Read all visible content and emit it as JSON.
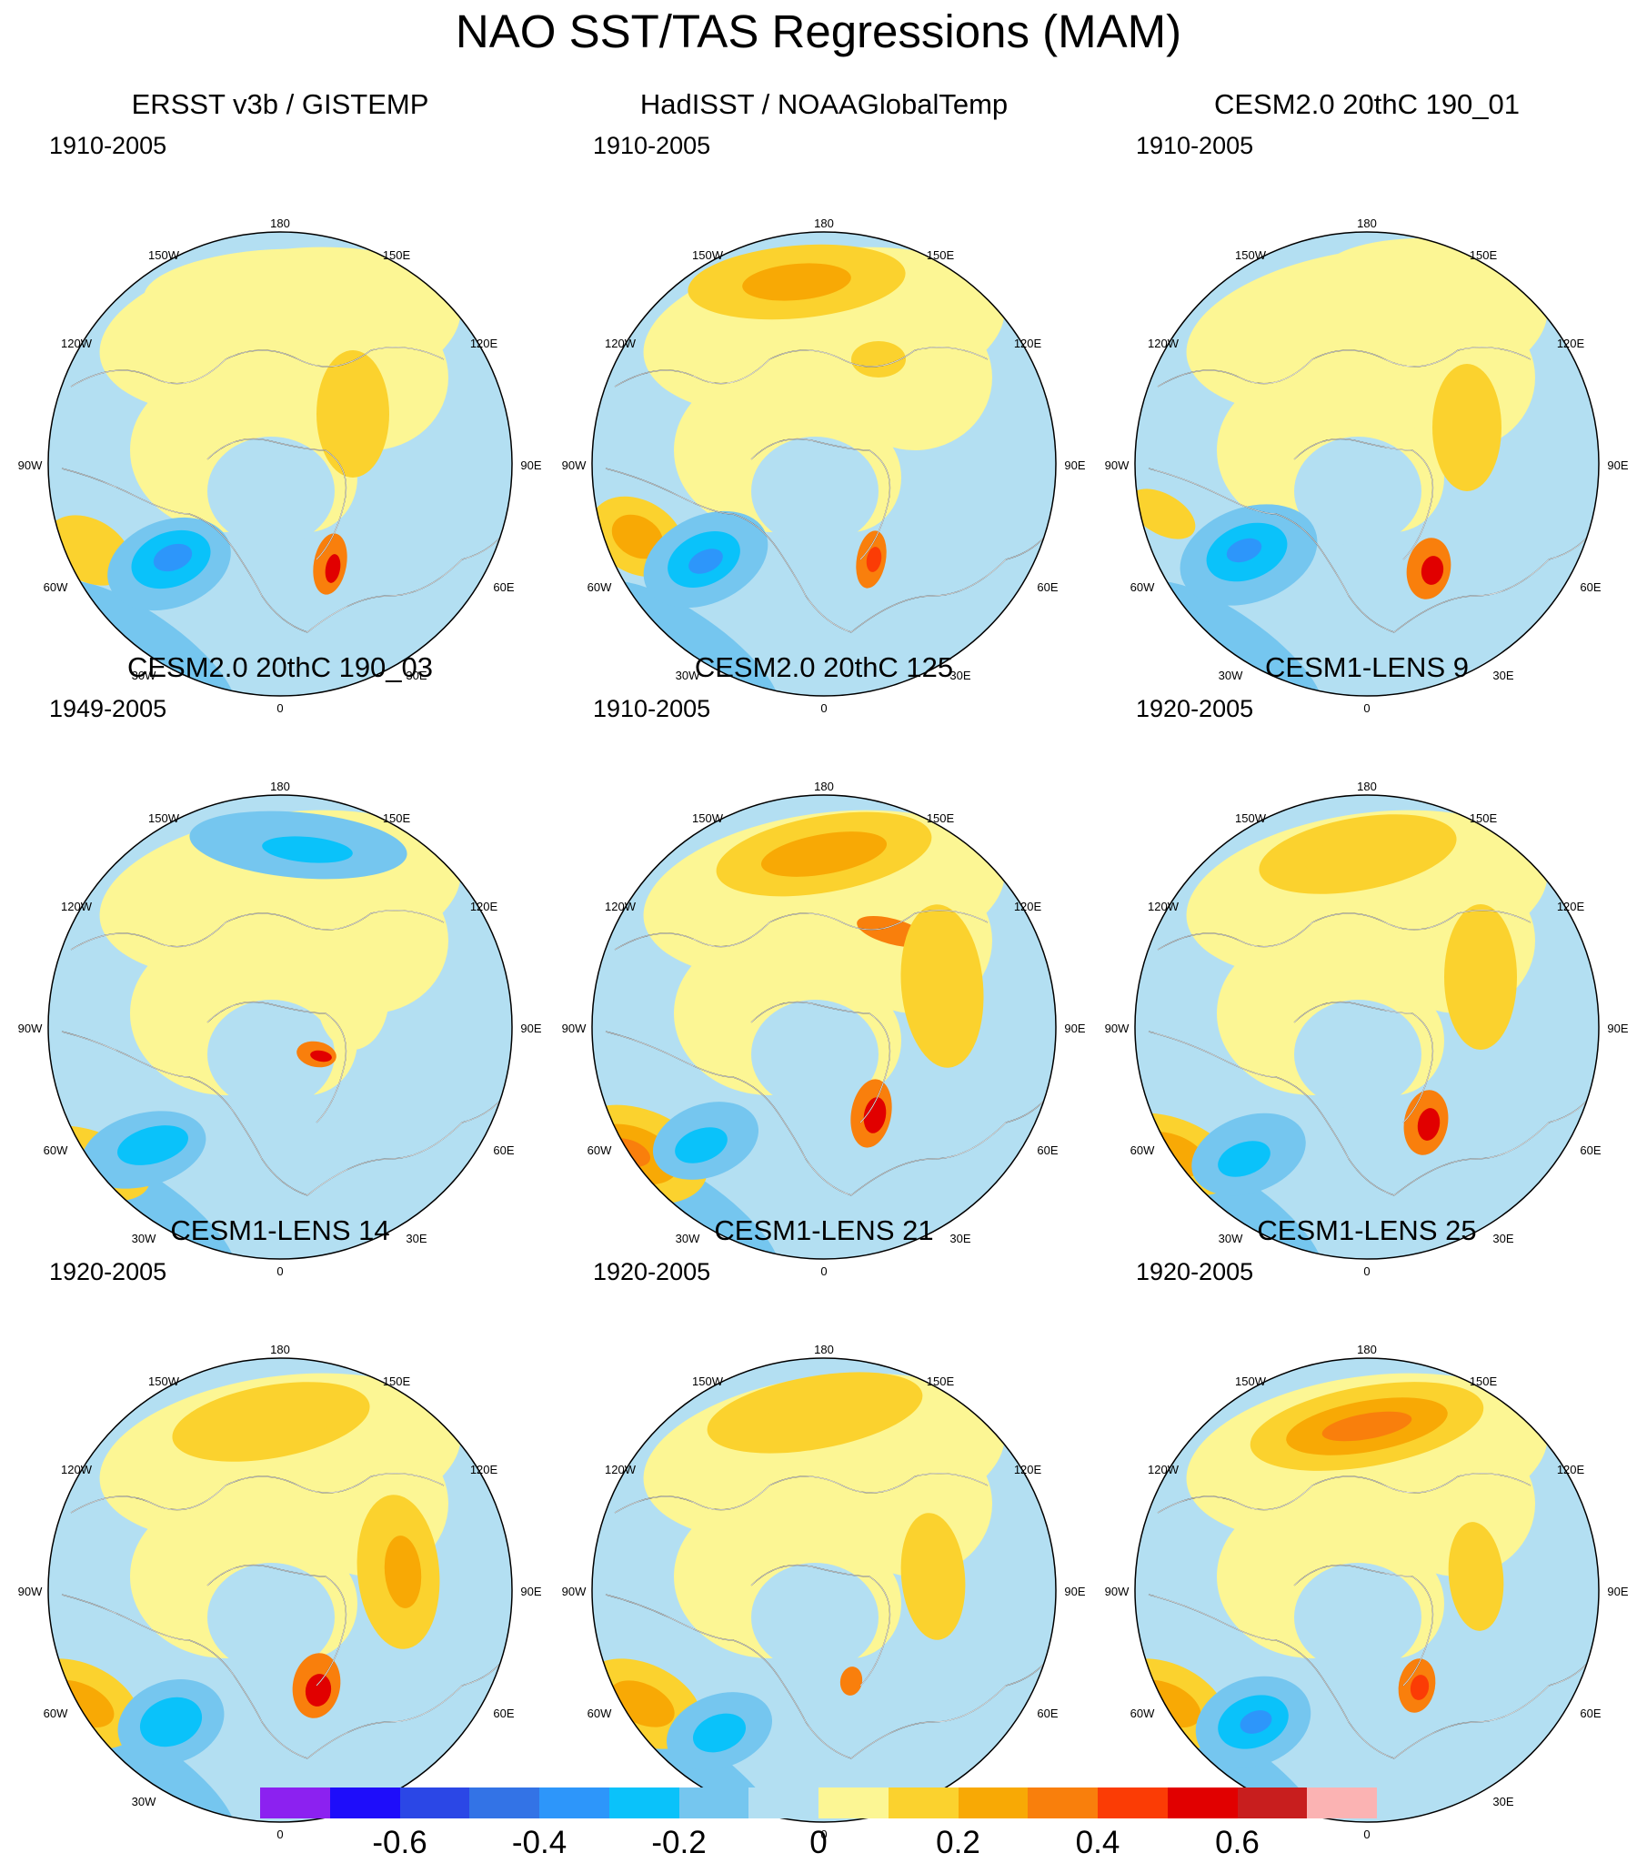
{
  "title": "NAO SST/TAS Regressions (MAM)",
  "longitude_labels": {
    "top": "180",
    "bottom": "0",
    "l150": "150W",
    "r150": "150E",
    "l120": "120W",
    "r120": "120E",
    "l90": "90W",
    "r90": "90E",
    "l60": "60W",
    "r60": "60E",
    "l30": "30W",
    "r30": "30E"
  },
  "panels": [
    {
      "title": "ERSST v3b / GISTEMP",
      "period": "1910-2005"
    },
    {
      "title": "HadISST / NOAAGlobalTemp",
      "period": "1910-2005"
    },
    {
      "title": "CESM2.0 20thC 190_01",
      "period": "1910-2005"
    },
    {
      "title": "CESM2.0 20thC 190_03",
      "period": "1949-2005"
    },
    {
      "title": "CESM2.0 20thC 125",
      "period": "1910-2005"
    },
    {
      "title": "CESM1-LENS 9",
      "period": "1920-2005"
    },
    {
      "title": "CESM1-LENS 14",
      "period": "1920-2005"
    },
    {
      "title": "CESM1-LENS 21",
      "period": "1920-2005"
    },
    {
      "title": "CESM1-LENS 25",
      "period": "1920-2005"
    }
  ],
  "colorbar": {
    "colors": [
      "#8c21f0",
      "#1e0dfa",
      "#2b47e6",
      "#3373e6",
      "#2d96fa",
      "#0ac2fa",
      "#75c6ef",
      "#b3dff2",
      "#fcf694",
      "#fbd22e",
      "#f8a905",
      "#f97f0c",
      "#fb3c05",
      "#e10000",
      "#c81e1e",
      "#fbb3b3"
    ],
    "labels": [
      "-0.6",
      "-0.4",
      "-0.2",
      "0",
      "0.2",
      "0.4",
      "0.6"
    ],
    "label_values": [
      -0.6,
      -0.4,
      -0.2,
      0,
      0.2,
      0.4,
      0.6
    ],
    "min": -0.8,
    "max": 0.8
  }
}
